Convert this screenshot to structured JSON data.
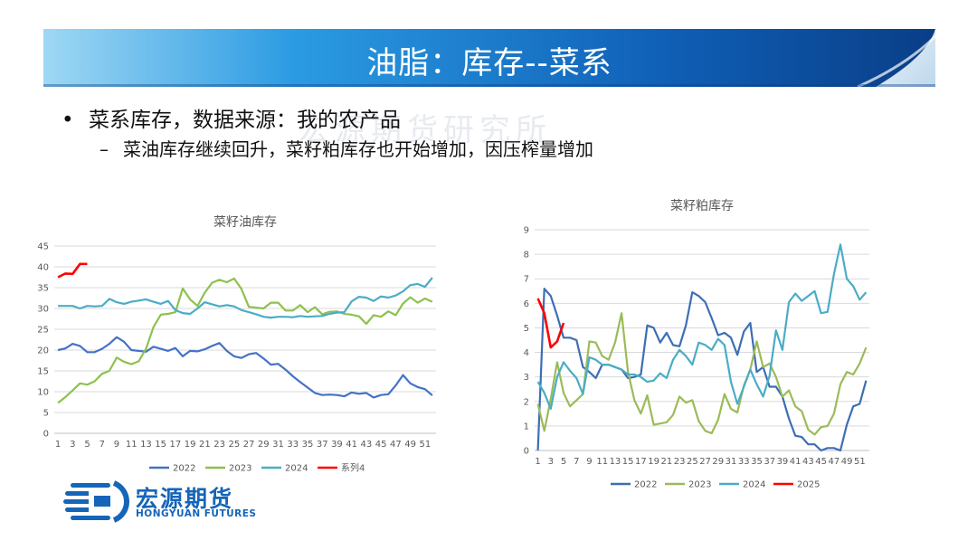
{
  "header": {
    "title": "油脂：库存--菜系"
  },
  "bullets": {
    "level1": {
      "marker": "•",
      "text": "菜系库存，数据来源：我的农产品"
    },
    "level2": {
      "marker": "–",
      "text": "菜油库存继续回升，菜籽粕库存也开始增加，因压榨量增加"
    }
  },
  "watermark": "宏源期货研究所",
  "logo": {
    "cn": "宏源期货",
    "en": "HONGYUAN FUTURES",
    "accent": "#1565b8"
  },
  "chart_data": [
    {
      "type": "line",
      "title": "菜籽油库存",
      "xlabel": "",
      "ylabel": "",
      "ylim": [
        0,
        45
      ],
      "yticks": [
        "0",
        "5",
        "10",
        "15",
        "20",
        "25",
        "30",
        "35",
        "40",
        "45"
      ],
      "xticks": [
        "1",
        "3",
        "5",
        "7",
        "9",
        "11",
        "13",
        "15",
        "17",
        "19",
        "21",
        "23",
        "25",
        "27",
        "29",
        "31",
        "33",
        "35",
        "37",
        "39",
        "41",
        "43",
        "45",
        "47",
        "49",
        "51"
      ],
      "grid": true,
      "legend": "bottom",
      "x_count": 52,
      "series": [
        {
          "name": "2022",
          "color": "#4472c4",
          "values": [
            20,
            20.4,
            21.5,
            21,
            19.5,
            19.5,
            20.3,
            21.5,
            23.1,
            22,
            20,
            19.8,
            19.6,
            20.8,
            20.3,
            19.8,
            20.5,
            18.5,
            19.8,
            19.7,
            20.2,
            21,
            21.7,
            19.8,
            18.5,
            18.1,
            19,
            19.3,
            18,
            16.5,
            16.7,
            15.3,
            13.7,
            12.3,
            11,
            9.7,
            9.2,
            9.3,
            9.2,
            8.9,
            9.8,
            9.5,
            9.7,
            8.6,
            9.2,
            9.4,
            11.5,
            14,
            12,
            11.1,
            10.6,
            9.1
          ]
        },
        {
          "name": "2023",
          "color": "#8dc14f",
          "values": [
            7.3,
            8.7,
            10.3,
            12,
            11.7,
            12.5,
            14.3,
            15,
            18.2,
            17.2,
            16.6,
            17.3,
            20.3,
            25.5,
            28.5,
            28.7,
            29.1,
            34.8,
            32.2,
            30.6,
            33.8,
            36.2,
            36.9,
            36.3,
            37.2,
            34.7,
            30.4,
            30.2,
            30,
            31.4,
            31.4,
            29.5,
            29.5,
            30.8,
            29.1,
            30.3,
            28.6,
            29.2,
            29.3,
            28.7,
            28.5,
            28.1,
            26.3,
            28.4,
            28,
            29.3,
            28.4,
            31.2,
            32.7,
            31.4,
            32.4,
            31.6
          ]
        },
        {
          "name": "2024",
          "color": "#4bacc6",
          "values": [
            30.6,
            30.6,
            30.6,
            30,
            30.6,
            30.5,
            30.6,
            32.3,
            31.5,
            31.1,
            31.6,
            31.9,
            32.2,
            31.6,
            31.1,
            31.8,
            29.6,
            28.9,
            28.7,
            30,
            31.5,
            31,
            30.5,
            30.8,
            30.5,
            29.6,
            29.1,
            28.6,
            28,
            27.8,
            28,
            28,
            27.9,
            28.2,
            28,
            28.1,
            28.2,
            28.7,
            29,
            29.1,
            31.7,
            32.8,
            32.6,
            31.8,
            32.9,
            32.6,
            33.1,
            34.1,
            35.6,
            35.9,
            35.2,
            37.4
          ]
        },
        {
          "name": "系列4",
          "color": "#ff0000",
          "values": [
            37.5,
            38.4,
            38.3,
            40.7,
            40.7
          ]
        }
      ]
    },
    {
      "type": "line",
      "title": "菜籽粕库存",
      "xlabel": "",
      "ylabel": "",
      "ylim": [
        0,
        9
      ],
      "yticks": [
        "0",
        "1",
        "2",
        "3",
        "4",
        "5",
        "6",
        "7",
        "8",
        "9"
      ],
      "xticks": [
        "1",
        "3",
        "5",
        "7",
        "9",
        "11",
        "13",
        "15",
        "17",
        "19",
        "21",
        "23",
        "25",
        "27",
        "29",
        "31",
        "33",
        "35",
        "37",
        "39",
        "41",
        "43",
        "45",
        "47",
        "49",
        "51"
      ],
      "grid": true,
      "legend": "bottom",
      "x_count": 52,
      "series": [
        {
          "name": "2022",
          "color": "#3d6eb4",
          "values": [
            0,
            6.6,
            6.3,
            5.5,
            4.6,
            4.6,
            4.5,
            3.4,
            3.2,
            2.95,
            3.5,
            3.5,
            3.4,
            3.3,
            2.95,
            3,
            3.1,
            5.1,
            5,
            4.4,
            4.8,
            4.3,
            4.25,
            5.1,
            6.45,
            6.3,
            6.05,
            5.4,
            4.7,
            4.8,
            4.6,
            3.9,
            4.85,
            5.2,
            3.2,
            3.4,
            2.6,
            2.6,
            2.2,
            1.3,
            0.6,
            0.55,
            0.25,
            0.25,
            0,
            0.1,
            0.1,
            0,
            1.05,
            1.8,
            1.9,
            2.85
          ]
        },
        {
          "name": "2023",
          "color": "#9bbb59",
          "values": [
            1.9,
            0.8,
            2.1,
            3.6,
            2.35,
            1.8,
            2.05,
            2.3,
            4.45,
            4.4,
            3.85,
            3.7,
            4.4,
            5.6,
            3.2,
            2.05,
            1.5,
            2.25,
            1.05,
            1.1,
            1.15,
            1.45,
            2.2,
            1.95,
            2.05,
            1.2,
            0.8,
            0.7,
            1.25,
            2.3,
            1.7,
            1.55,
            2.65,
            3.3,
            4.45,
            3.4,
            3.55,
            3,
            2.2,
            2.45,
            1.8,
            1.6,
            0.85,
            0.65,
            0.95,
            1,
            1.5,
            2.7,
            3.2,
            3.1,
            3.55,
            4.2
          ]
        },
        {
          "name": "2024",
          "color": "#4bacc6",
          "values": [
            2.8,
            2.35,
            1.7,
            3,
            3.6,
            3.25,
            2.95,
            2.3,
            3.8,
            3.7,
            3.5,
            3.5,
            3.4,
            3.3,
            3.1,
            3.1,
            3,
            2.8,
            2.85,
            3.15,
            2.95,
            3.7,
            4.1,
            3.85,
            3.5,
            4.4,
            4.3,
            4.1,
            4.55,
            4.3,
            2.8,
            1.9,
            2.6,
            3.3,
            2.7,
            2.2,
            3.05,
            4.9,
            4.1,
            6.05,
            6.4,
            6.1,
            6.3,
            6.5,
            5.6,
            5.65,
            7.2,
            8.4,
            7,
            6.7,
            6.15,
            6.45
          ]
        },
        {
          "name": "2025",
          "color": "#ff0000",
          "values": [
            6.2,
            5.6,
            4.2,
            4.45,
            5.2
          ]
        }
      ]
    }
  ]
}
